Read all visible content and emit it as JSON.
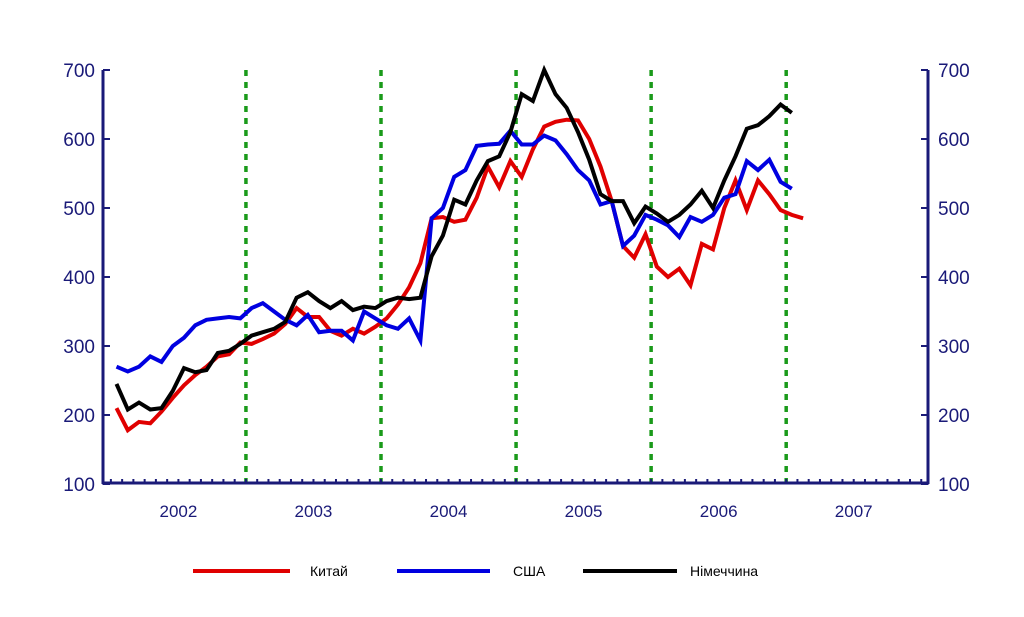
{
  "chart_data": {
    "type": "line",
    "title": "",
    "xlabel": "",
    "ylabel": "",
    "x_unit": "months since Jan 2002 (point at mid-month)",
    "xlim": [
      -0.7,
      72.6
    ],
    "ylim": [
      100,
      700
    ],
    "yticks": [
      100,
      200,
      300,
      400,
      500,
      600,
      700
    ],
    "yticks_right": [
      100,
      200,
      300,
      400,
      500,
      600,
      700
    ],
    "year_labels": [
      "2002",
      "2003",
      "2004",
      "2005",
      "2006",
      "2007"
    ],
    "year_boundaries_dashed": [
      12,
      24,
      36,
      48,
      60
    ],
    "grid": false,
    "legend_position": "bottom",
    "series": [
      {
        "name": "Китай",
        "color": "#e00000",
        "values": [
          210,
          178,
          190,
          188,
          205,
          225,
          243,
          258,
          270,
          285,
          288,
          305,
          303,
          310,
          318,
          332,
          355,
          342,
          342,
          322,
          315,
          325,
          318,
          328,
          340,
          360,
          385,
          420,
          485,
          487,
          480,
          483,
          515,
          560,
          530,
          568,
          545,
          585,
          618,
          625,
          628,
          627,
          600,
          560,
          510,
          445,
          428,
          462,
          415,
          400,
          412,
          388,
          448,
          440,
          500,
          540,
          497,
          540,
          520,
          497,
          490,
          485
        ]
      },
      {
        "name": "США",
        "color": "#0000e0",
        "values": [
          270,
          263,
          270,
          285,
          277,
          300,
          312,
          330,
          338,
          340,
          342,
          340,
          355,
          362,
          350,
          338,
          330,
          345,
          320,
          322,
          322,
          308,
          350,
          340,
          330,
          325,
          340,
          308,
          485,
          500,
          545,
          555,
          590,
          592,
          593,
          612,
          592,
          592,
          605,
          598,
          578,
          555,
          540,
          505,
          510,
          445,
          460,
          490,
          483,
          475,
          458,
          487,
          480,
          490,
          515,
          520,
          568,
          555,
          570,
          538,
          528
        ]
      },
      {
        "name": "Німеччина",
        "color": "#000000",
        "values": [
          245,
          208,
          218,
          208,
          210,
          235,
          268,
          262,
          265,
          290,
          293,
          303,
          315,
          320,
          325,
          335,
          370,
          378,
          365,
          355,
          365,
          352,
          357,
          355,
          365,
          370,
          368,
          370,
          430,
          460,
          512,
          505,
          540,
          568,
          575,
          610,
          665,
          655,
          700,
          665,
          645,
          610,
          570,
          520,
          510,
          510,
          478,
          502,
          492,
          480,
          490,
          505,
          525,
          500,
          540,
          575,
          615,
          620,
          633,
          650,
          638
        ]
      }
    ],
    "axis_color": "#1a1a78",
    "divider_color": "#1a9a1a"
  }
}
